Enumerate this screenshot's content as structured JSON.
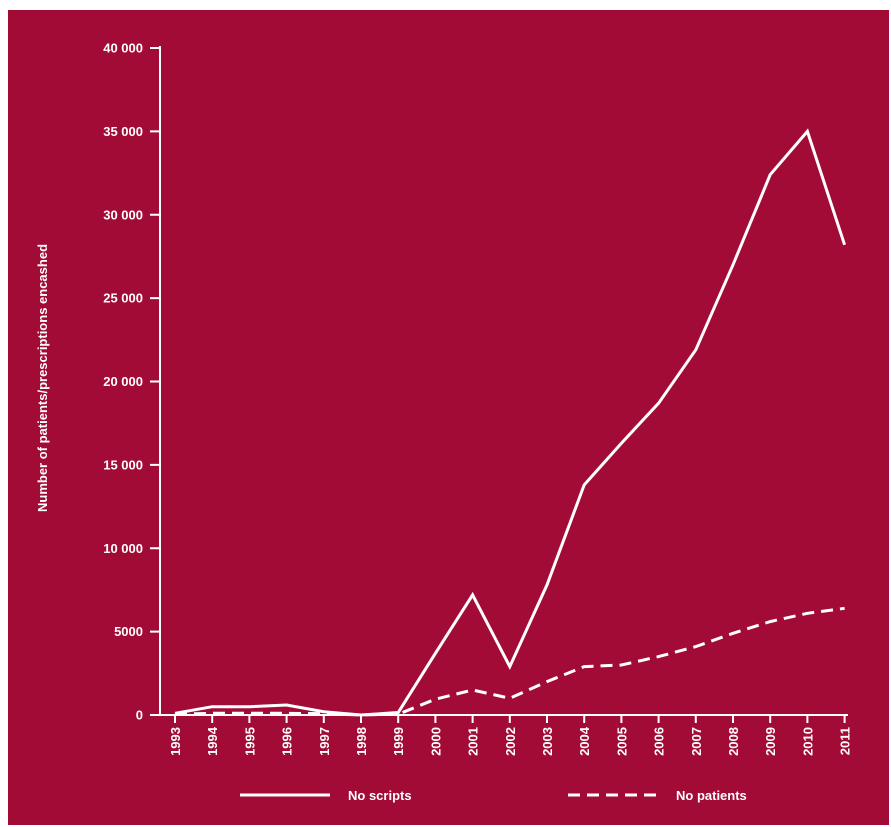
{
  "colors": {
    "background": "#a20b35",
    "foreground": "#ffffff"
  },
  "chart_data": {
    "type": "line",
    "ylabel": "Number of patients/prescriptions encashed",
    "xlabel": "",
    "ylim": [
      0,
      40000
    ],
    "yticks": [
      0,
      5000,
      10000,
      15000,
      20000,
      25000,
      30000,
      35000,
      40000
    ],
    "ytick_labels": [
      "0",
      "5000",
      "10 000",
      "15 000",
      "20 000",
      "25 000",
      "30 000",
      "35 000",
      "40 000"
    ],
    "categories": [
      "1993",
      "1994",
      "1995",
      "1996",
      "1997",
      "1998",
      "1999",
      "2000",
      "2001",
      "2002",
      "2003",
      "2004",
      "2005",
      "2006",
      "2007",
      "2008",
      "2009",
      "2010",
      "2011"
    ],
    "grid": false,
    "legend_position": "bottom",
    "series": [
      {
        "name": "No scripts",
        "style": "solid",
        "values": [
          100,
          500,
          500,
          600,
          200,
          0,
          150,
          3700,
          7200,
          2900,
          7800,
          13800,
          16300,
          18700,
          21900,
          27000,
          32400,
          35000,
          28200
        ]
      },
      {
        "name": "No patients",
        "style": "dashed",
        "values": [
          50,
          100,
          100,
          100,
          80,
          0,
          50,
          950,
          1500,
          1000,
          2000,
          2900,
          3000,
          3500,
          4100,
          4900,
          5600,
          6100,
          6400
        ]
      }
    ]
  }
}
